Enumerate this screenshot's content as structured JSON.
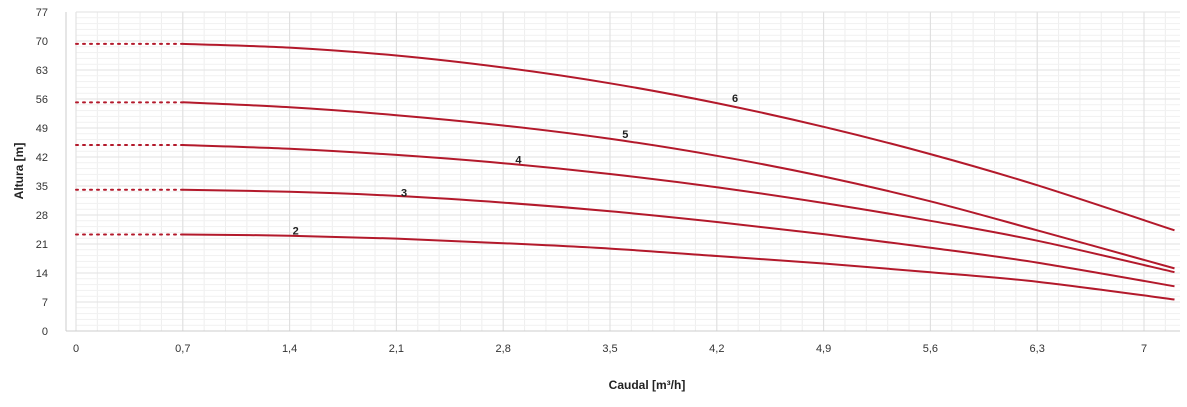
{
  "chart_data": {
    "type": "line",
    "title": "",
    "xlabel": "Caudal [m³/h]",
    "ylabel": "Altura [m]",
    "xlim": [
      0,
      7.2
    ],
    "ylim": [
      0,
      77
    ],
    "x_ticks": [
      0,
      0.7,
      1.4,
      2.1,
      2.8,
      3.5,
      4.2,
      4.9,
      5.6,
      6.3,
      7
    ],
    "x_tick_labels": [
      "0",
      "0,7",
      "1,4",
      "2,1",
      "2,8",
      "3,5",
      "4,2",
      "4,9",
      "5,6",
      "6,3",
      "7"
    ],
    "y_ticks": [
      0,
      7,
      14,
      21,
      28,
      35,
      42,
      49,
      56,
      63,
      70,
      77
    ],
    "y_tick_labels": [
      "0",
      "7",
      "14",
      "21",
      "28",
      "35",
      "42",
      "49",
      "56",
      "63",
      "70",
      "77"
    ],
    "grid": true,
    "line_color": "#b3192b",
    "dotted_extension_x": [
      0,
      0.7
    ],
    "series": [
      {
        "name": "2",
        "label_at": [
          1.44,
          24.2
        ],
        "x": [
          0.7,
          1.4,
          2.1,
          2.8,
          3.5,
          4.2,
          4.9,
          5.6,
          6.3,
          7.2
        ],
        "values": [
          23.3,
          23.0,
          22.3,
          21.2,
          19.9,
          18.1,
          16.3,
          14.2,
          11.9,
          7.6
        ]
      },
      {
        "name": "3",
        "label_at": [
          2.15,
          33.4
        ],
        "x": [
          0.7,
          1.4,
          2.1,
          2.8,
          3.5,
          4.2,
          4.9,
          5.6,
          6.3,
          7.2
        ],
        "values": [
          34.1,
          33.6,
          32.6,
          31.0,
          28.9,
          26.3,
          23.4,
          20.1,
          16.5,
          10.8
        ]
      },
      {
        "name": "4",
        "label_at": [
          2.9,
          41.4
        ],
        "x": [
          0.7,
          1.4,
          2.1,
          2.8,
          3.5,
          4.2,
          4.9,
          5.6,
          6.3,
          7.2
        ],
        "values": [
          44.9,
          44.0,
          42.5,
          40.5,
          37.9,
          34.7,
          30.9,
          26.6,
          21.8,
          14.2
        ]
      },
      {
        "name": "5",
        "label_at": [
          3.6,
          47.5
        ],
        "x": [
          0.7,
          1.4,
          2.1,
          2.8,
          3.5,
          4.2,
          4.9,
          5.6,
          6.3,
          7.2
        ],
        "values": [
          55.2,
          54.0,
          52.1,
          49.6,
          46.4,
          42.3,
          37.3,
          31.3,
          24.3,
          15.1
        ]
      },
      {
        "name": "6",
        "label_at": [
          4.32,
          56.3
        ],
        "x": [
          0.7,
          1.4,
          2.1,
          2.8,
          3.5,
          4.2,
          4.9,
          5.6,
          6.3,
          7.2
        ],
        "values": [
          69.3,
          68.4,
          66.5,
          63.6,
          59.8,
          55.0,
          49.3,
          42.7,
          35.2,
          24.3
        ]
      }
    ]
  }
}
